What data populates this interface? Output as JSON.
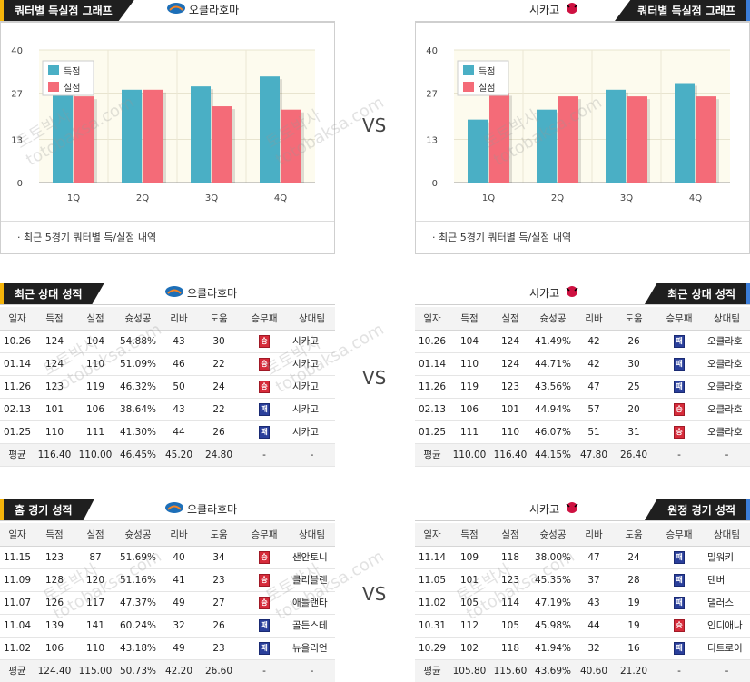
{
  "left_chart": {
    "tab": "쿼터별 득실점 그래프",
    "team": "오클라호마",
    "note": "· 최근 5경기 쿼터별 득/실점 내역",
    "chart_data": {
      "type": "bar",
      "categories": [
        "1Q",
        "2Q",
        "3Q",
        "4Q"
      ],
      "yticks": [
        "40",
        "27",
        "13",
        "0"
      ],
      "ylim": [
        0,
        40
      ],
      "legend": "top-left",
      "series": [
        {
          "name": "득점",
          "color": "#4aafc5",
          "values": [
            29,
            28,
            29,
            32
          ]
        },
        {
          "name": "실점",
          "color": "#f46b78",
          "values": [
            26,
            28,
            23,
            22
          ]
        }
      ]
    }
  },
  "right_chart": {
    "tab": "쿼터별 득실점 그래프",
    "team": "시카고",
    "note": "· 최근 5경기 쿼터별 득/실점 내역",
    "chart_data": {
      "type": "bar",
      "categories": [
        "1Q",
        "2Q",
        "3Q",
        "4Q"
      ],
      "yticks": [
        "40",
        "27",
        "13",
        "0"
      ],
      "ylim": [
        0,
        40
      ],
      "legend": "top-left",
      "series": [
        {
          "name": "득점",
          "color": "#4aafc5",
          "values": [
            19,
            22,
            28,
            30
          ]
        },
        {
          "name": "실점",
          "color": "#f46b78",
          "values": [
            27,
            26,
            26,
            26
          ]
        }
      ]
    }
  },
  "vs": "VS",
  "columns": [
    "일자",
    "득점",
    "실점",
    "슛성공",
    "리바",
    "도움",
    "승무패",
    "상대팀"
  ],
  "win_glyph": "승",
  "loss_glyph": "패",
  "left_h2h": {
    "tab": "최근 상대 성적",
    "team": "오클라호마",
    "rows": [
      [
        "10.26",
        "124",
        "104",
        "54.88%",
        "43",
        "30",
        "W",
        "시카고"
      ],
      [
        "01.14",
        "124",
        "110",
        "51.09%",
        "46",
        "22",
        "W",
        "시카고"
      ],
      [
        "11.26",
        "123",
        "119",
        "46.32%",
        "50",
        "24",
        "W",
        "시카고"
      ],
      [
        "02.13",
        "101",
        "106",
        "38.64%",
        "43",
        "22",
        "L",
        "시카고"
      ],
      [
        "01.25",
        "110",
        "111",
        "41.30%",
        "44",
        "26",
        "L",
        "시카고"
      ]
    ],
    "avg": [
      "평균",
      "116.40",
      "110.00",
      "46.45%",
      "45.20",
      "24.80",
      "-",
      "-"
    ]
  },
  "right_h2h": {
    "tab": "최근 상대 성적",
    "team": "시카고",
    "rows": [
      [
        "10.26",
        "104",
        "124",
        "41.49%",
        "42",
        "26",
        "L",
        "오클라호"
      ],
      [
        "01.14",
        "110",
        "124",
        "44.71%",
        "42",
        "30",
        "L",
        "오클라호"
      ],
      [
        "11.26",
        "119",
        "123",
        "43.56%",
        "47",
        "25",
        "L",
        "오클라호"
      ],
      [
        "02.13",
        "106",
        "101",
        "44.94%",
        "57",
        "20",
        "W",
        "오클라호"
      ],
      [
        "01.25",
        "111",
        "110",
        "46.07%",
        "51",
        "31",
        "W",
        "오클라호"
      ]
    ],
    "avg": [
      "평균",
      "110.00",
      "116.40",
      "44.15%",
      "47.80",
      "26.40",
      "-",
      "-"
    ]
  },
  "left_home": {
    "tab": "홈 경기 성적",
    "team": "오클라호마",
    "rows": [
      [
        "11.15",
        "123",
        "87",
        "51.69%",
        "40",
        "34",
        "W",
        "샌안토니"
      ],
      [
        "11.09",
        "128",
        "120",
        "51.16%",
        "41",
        "23",
        "W",
        "클리블랜"
      ],
      [
        "11.07",
        "126",
        "117",
        "47.37%",
        "49",
        "27",
        "W",
        "애틀랜타"
      ],
      [
        "11.04",
        "139",
        "141",
        "60.24%",
        "32",
        "26",
        "L",
        "골든스테"
      ],
      [
        "11.02",
        "106",
        "110",
        "43.18%",
        "49",
        "23",
        "L",
        "뉴올리언"
      ]
    ],
    "avg": [
      "평균",
      "124.40",
      "115.00",
      "50.73%",
      "42.20",
      "26.60",
      "-",
      "-"
    ]
  },
  "right_away": {
    "tab": "원정 경기 성적",
    "team": "시카고",
    "rows": [
      [
        "11.14",
        "109",
        "118",
        "38.00%",
        "47",
        "24",
        "L",
        "밀워키"
      ],
      [
        "11.05",
        "101",
        "123",
        "45.35%",
        "37",
        "28",
        "L",
        "덴버"
      ],
      [
        "11.02",
        "105",
        "114",
        "47.19%",
        "43",
        "19",
        "L",
        "댈러스"
      ],
      [
        "10.31",
        "112",
        "105",
        "45.98%",
        "44",
        "19",
        "W",
        "인디애나"
      ],
      [
        "10.29",
        "102",
        "118",
        "41.94%",
        "32",
        "16",
        "L",
        "디트로이"
      ]
    ],
    "avg": [
      "평균",
      "105.80",
      "115.60",
      "43.69%",
      "40.60",
      "21.20",
      "-",
      "-"
    ]
  },
  "watermark": [
    "토토박사",
    "totobaksa.com"
  ]
}
